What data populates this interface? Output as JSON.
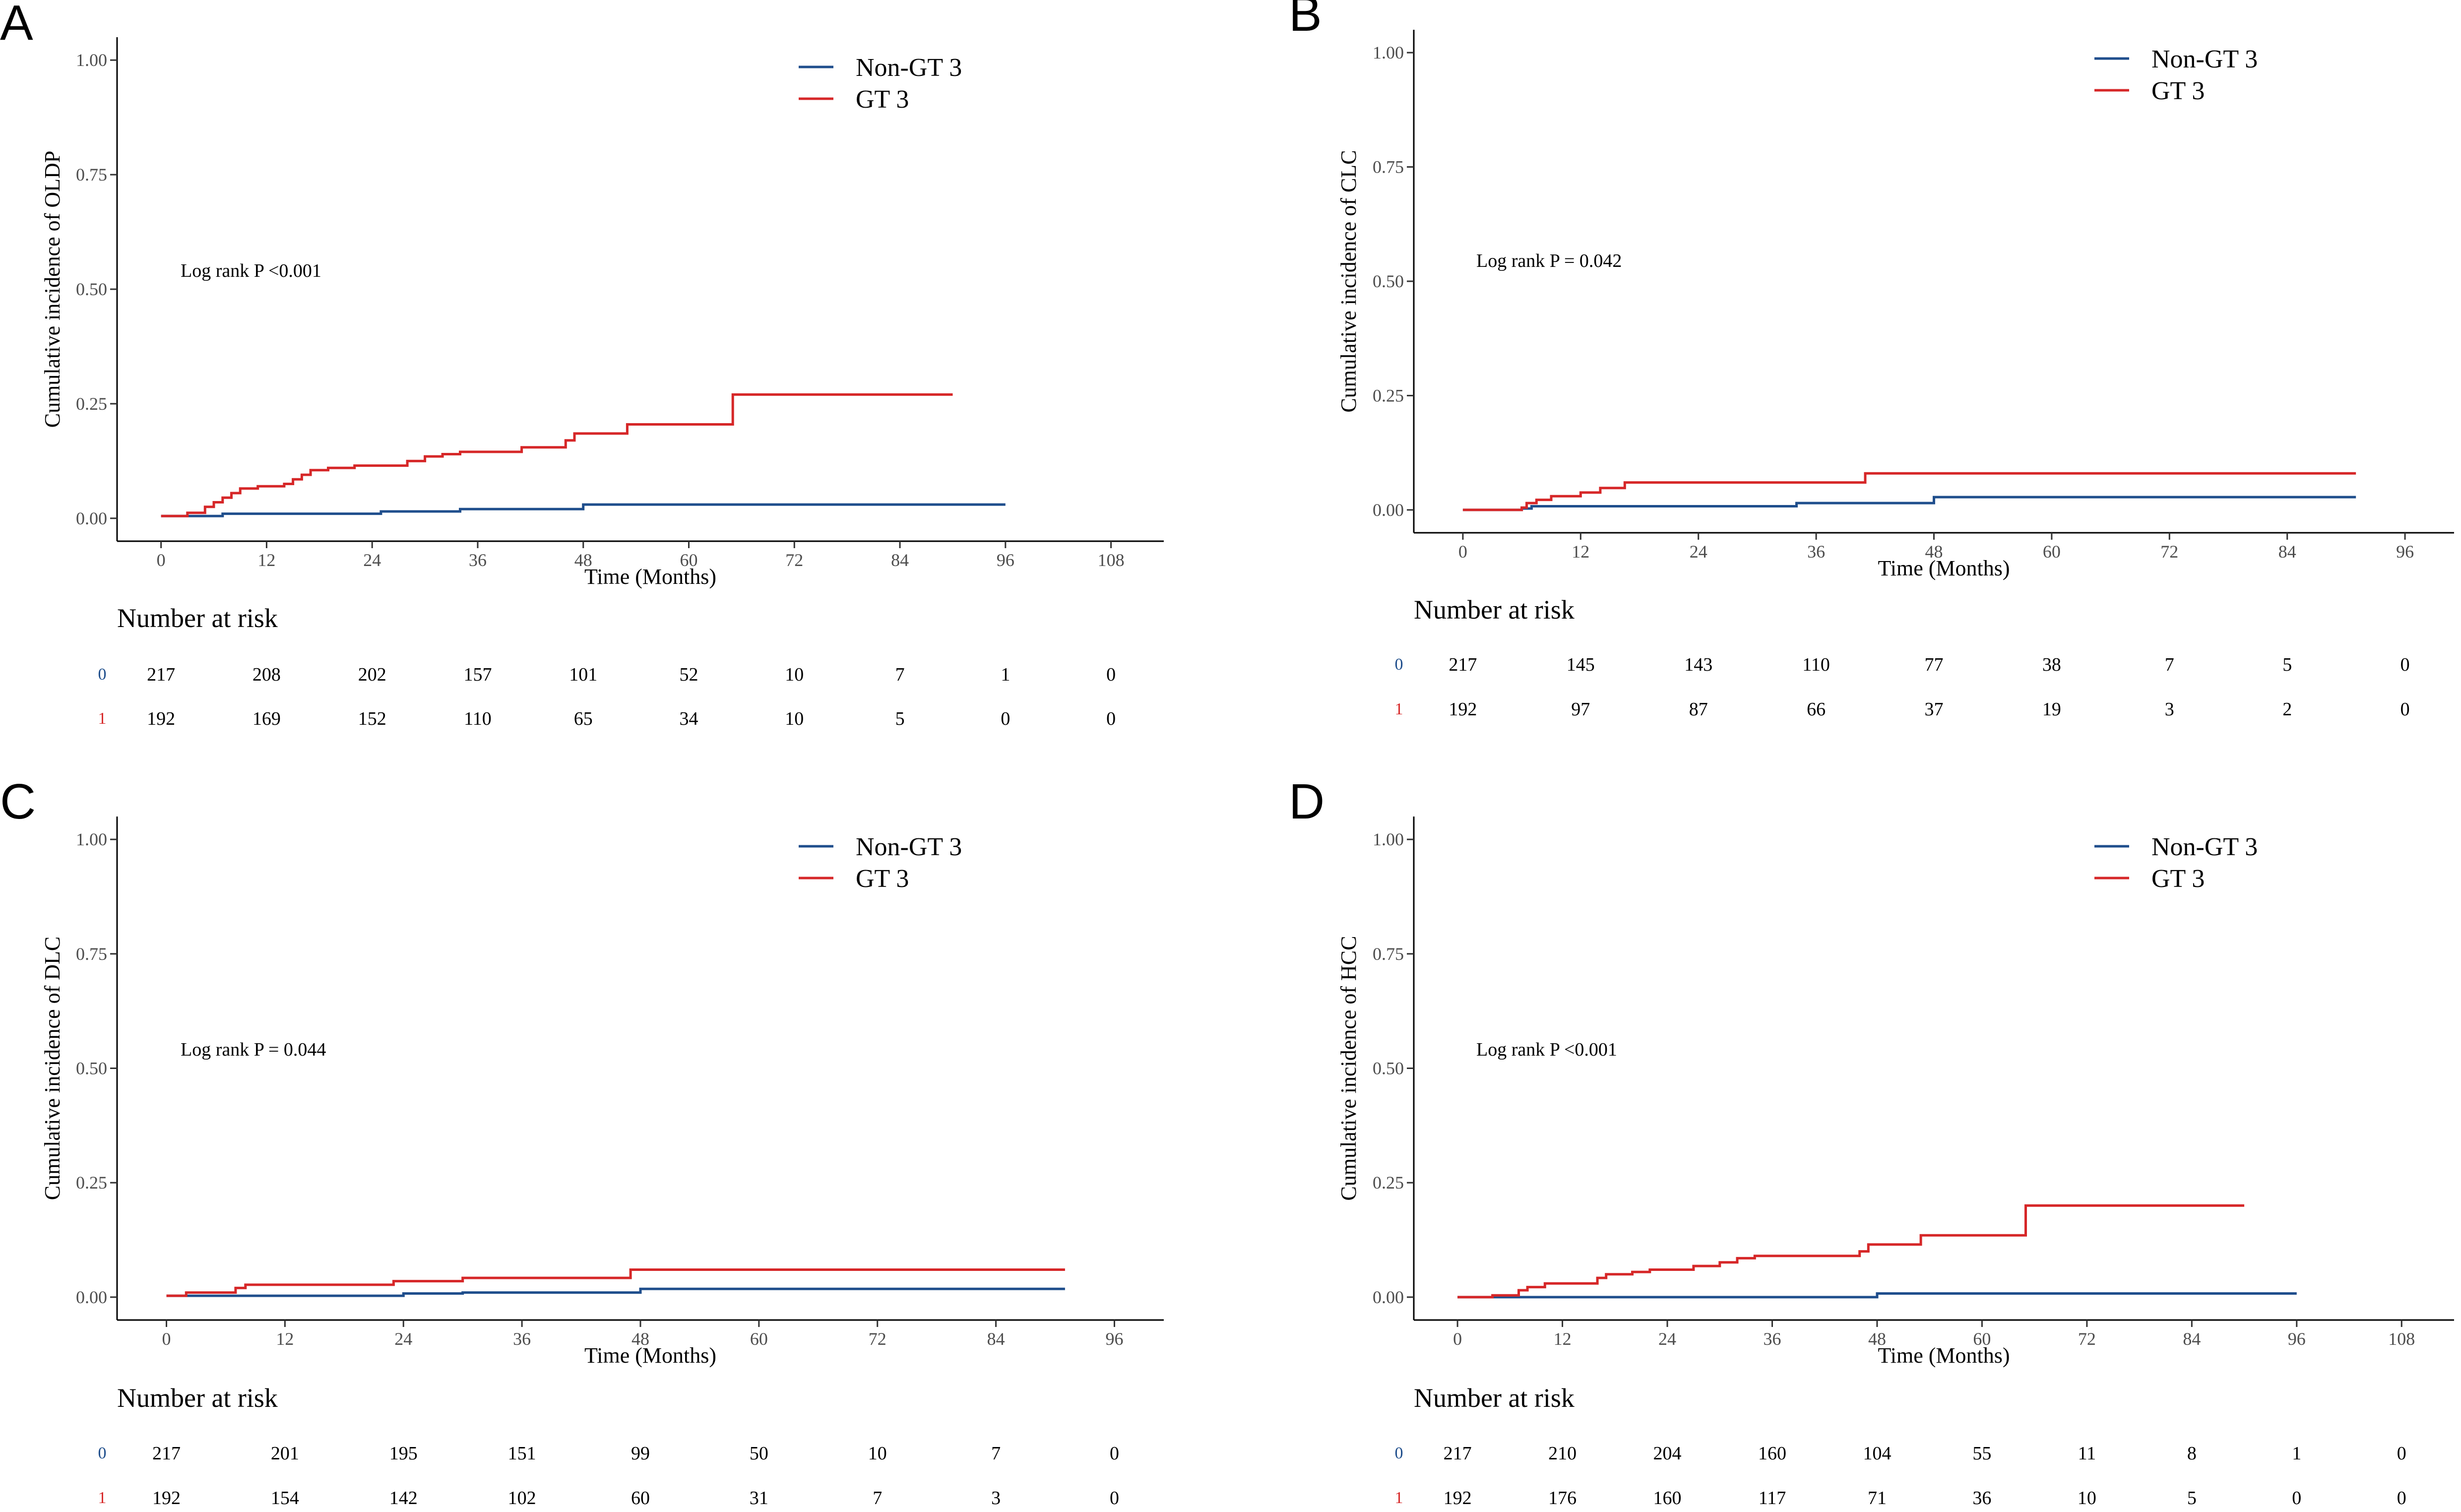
{
  "colors": {
    "nongt3": "#1f4e8c",
    "gt3": "#d62728",
    "axis": "#000000"
  },
  "chart_data": [
    {
      "panel": "A",
      "type": "line",
      "subtype": "step",
      "ylabel": "Cumulative incidence of  OLDP",
      "xlabel": "Time (Months)",
      "xticks": [
        0,
        12,
        24,
        36,
        48,
        60,
        72,
        84,
        96,
        108
      ],
      "yticks": [
        "0.00",
        "0.25",
        "0.50",
        "0.75",
        "1.00"
      ],
      "xlim": [
        -5,
        114
      ],
      "ylim": [
        -0.05,
        1.05
      ],
      "annotation": "Log rank P <0.001",
      "legend": [
        "Non-GT 3",
        "GT 3"
      ],
      "legend_position": "top-right",
      "series": [
        {
          "name": "Non-GT 3",
          "color": "#1f4e8c",
          "points": [
            [
              0,
              0.005
            ],
            [
              7,
              0.01
            ],
            [
              25,
              0.015
            ],
            [
              34,
              0.02
            ],
            [
              48,
              0.03
            ],
            [
              96,
              0.03
            ]
          ]
        },
        {
          "name": "GT 3",
          "color": "#d62728",
          "points": [
            [
              0,
              0.005
            ],
            [
              3,
              0.012
            ],
            [
              5,
              0.025
            ],
            [
              6,
              0.035
            ],
            [
              7,
              0.045
            ],
            [
              8,
              0.055
            ],
            [
              9,
              0.065
            ],
            [
              11,
              0.07
            ],
            [
              14,
              0.075
            ],
            [
              15,
              0.085
            ],
            [
              16,
              0.095
            ],
            [
              17,
              0.105
            ],
            [
              19,
              0.11
            ],
            [
              22,
              0.115
            ],
            [
              28,
              0.125
            ],
            [
              30,
              0.135
            ],
            [
              32,
              0.14
            ],
            [
              34,
              0.145
            ],
            [
              41,
              0.155
            ],
            [
              46,
              0.17
            ],
            [
              47,
              0.185
            ],
            [
              53,
              0.205
            ],
            [
              65,
              0.27
            ],
            [
              90,
              0.27
            ]
          ]
        }
      ],
      "risk_table": {
        "title": "Number at risk",
        "groups": [
          "0",
          "1"
        ],
        "times": [
          0,
          12,
          24,
          36,
          48,
          60,
          72,
          84,
          96,
          108
        ],
        "rows": [
          [
            "217",
            "208",
            "202",
            "157",
            "101",
            "52",
            "10",
            "7",
            "1",
            "0"
          ],
          [
            "192",
            "169",
            "152",
            "110",
            "65",
            "34",
            "10",
            "5",
            "0",
            "0"
          ]
        ]
      }
    },
    {
      "panel": "B",
      "type": "line",
      "subtype": "step",
      "ylabel": "Cumulative incidence of  CLC",
      "xlabel": "Time (Months)",
      "xticks": [
        0,
        12,
        24,
        36,
        48,
        60,
        72,
        84,
        96
      ],
      "yticks": [
        "0.00",
        "0.25",
        "0.50",
        "0.75",
        "1.00"
      ],
      "xlim": [
        -5,
        101
      ],
      "ylim": [
        -0.05,
        1.05
      ],
      "annotation": "Log rank P = 0.042",
      "legend": [
        "Non-GT 3",
        "GT 3"
      ],
      "legend_position": "top-right",
      "series": [
        {
          "name": "Non-GT 3",
          "color": "#1f4e8c",
          "points": [
            [
              0,
              0
            ],
            [
              6,
              0.003
            ],
            [
              7,
              0.008
            ],
            [
              34,
              0.015
            ],
            [
              48,
              0.028
            ],
            [
              91,
              0.028
            ]
          ]
        },
        {
          "name": "GT 3",
          "color": "#d62728",
          "points": [
            [
              0,
              0
            ],
            [
              6,
              0.005
            ],
            [
              6.5,
              0.015
            ],
            [
              7.5,
              0.022
            ],
            [
              9,
              0.03
            ],
            [
              12,
              0.038
            ],
            [
              14,
              0.048
            ],
            [
              16.5,
              0.06
            ],
            [
              41,
              0.08
            ],
            [
              91,
              0.08
            ]
          ]
        }
      ],
      "risk_table": {
        "title": "Number at risk",
        "groups": [
          "0",
          "1"
        ],
        "times": [
          0,
          12,
          24,
          36,
          48,
          60,
          72,
          84,
          96
        ],
        "rows": [
          [
            "217",
            "145",
            "143",
            "110",
            "77",
            "38",
            "7",
            "5",
            "0"
          ],
          [
            "192",
            "97",
            "87",
            "66",
            "37",
            "19",
            "3",
            "2",
            "0"
          ]
        ]
      }
    },
    {
      "panel": "C",
      "type": "line",
      "subtype": "step",
      "ylabel": "Cumulative incidence of  DLC",
      "xlabel": "Time (Months)",
      "xticks": [
        0,
        12,
        24,
        36,
        48,
        60,
        72,
        84,
        96
      ],
      "yticks": [
        "0.00",
        "0.25",
        "0.50",
        "0.75",
        "1.00"
      ],
      "xlim": [
        -5,
        101
      ],
      "ylim": [
        -0.05,
        1.05
      ],
      "annotation": "Log rank P = 0.044",
      "legend": [
        "Non-GT 3",
        "GT 3"
      ],
      "legend_position": "top-right",
      "series": [
        {
          "name": "Non-GT 3",
          "color": "#1f4e8c",
          "points": [
            [
              0,
              0.003
            ],
            [
              24,
              0.008
            ],
            [
              30,
              0.01
            ],
            [
              48,
              0.018
            ],
            [
              91,
              0.018
            ]
          ]
        },
        {
          "name": "GT 3",
          "color": "#d62728",
          "points": [
            [
              0,
              0.003
            ],
            [
              2,
              0.01
            ],
            [
              7,
              0.02
            ],
            [
              8,
              0.027
            ],
            [
              23,
              0.035
            ],
            [
              30,
              0.042
            ],
            [
              47,
              0.06
            ],
            [
              91,
              0.06
            ]
          ]
        }
      ],
      "risk_table": {
        "title": "Number at risk",
        "groups": [
          "0",
          "1"
        ],
        "times": [
          0,
          12,
          24,
          36,
          48,
          60,
          72,
          84,
          96
        ],
        "rows": [
          [
            "217",
            "201",
            "195",
            "151",
            "99",
            "50",
            "10",
            "7",
            "0"
          ],
          [
            "192",
            "154",
            "142",
            "102",
            "60",
            "31",
            "7",
            "3",
            "0"
          ]
        ]
      }
    },
    {
      "panel": "D",
      "type": "line",
      "subtype": "step",
      "ylabel": "Cumulative incidence of  HCC",
      "xlabel": "Time (Months)",
      "xticks": [
        0,
        12,
        24,
        36,
        48,
        60,
        72,
        84,
        96,
        108
      ],
      "yticks": [
        "0.00",
        "0.25",
        "0.50",
        "0.75",
        "1.00"
      ],
      "xlim": [
        -5,
        114
      ],
      "ylim": [
        -0.05,
        1.05
      ],
      "annotation": "Log rank P <0.001",
      "legend": [
        "Non-GT 3",
        "GT 3"
      ],
      "legend_position": "top-right",
      "series": [
        {
          "name": "Non-GT 3",
          "color": "#1f4e8c",
          "points": [
            [
              0,
              0
            ],
            [
              48,
              0.008
            ],
            [
              96,
              0.008
            ]
          ]
        },
        {
          "name": "GT 3",
          "color": "#d62728",
          "points": [
            [
              0,
              0
            ],
            [
              4,
              0.004
            ],
            [
              7,
              0.015
            ],
            [
              8,
              0.022
            ],
            [
              10,
              0.03
            ],
            [
              16,
              0.042
            ],
            [
              17,
              0.05
            ],
            [
              20,
              0.055
            ],
            [
              22,
              0.06
            ],
            [
              27,
              0.068
            ],
            [
              30,
              0.076
            ],
            [
              32,
              0.085
            ],
            [
              34,
              0.09
            ],
            [
              46,
              0.1
            ],
            [
              47,
              0.115
            ],
            [
              53,
              0.135
            ],
            [
              65,
              0.2
            ],
            [
              90,
              0.2
            ]
          ]
        }
      ],
      "risk_table": {
        "title": "Number at risk",
        "groups": [
          "0",
          "1"
        ],
        "times": [
          0,
          12,
          24,
          36,
          48,
          60,
          72,
          84,
          96,
          108
        ],
        "rows": [
          [
            "217",
            "210",
            "204",
            "160",
            "104",
            "55",
            "11",
            "8",
            "1",
            "0"
          ],
          [
            "192",
            "176",
            "160",
            "117",
            "71",
            "36",
            "10",
            "5",
            "0",
            "0"
          ]
        ]
      }
    }
  ]
}
